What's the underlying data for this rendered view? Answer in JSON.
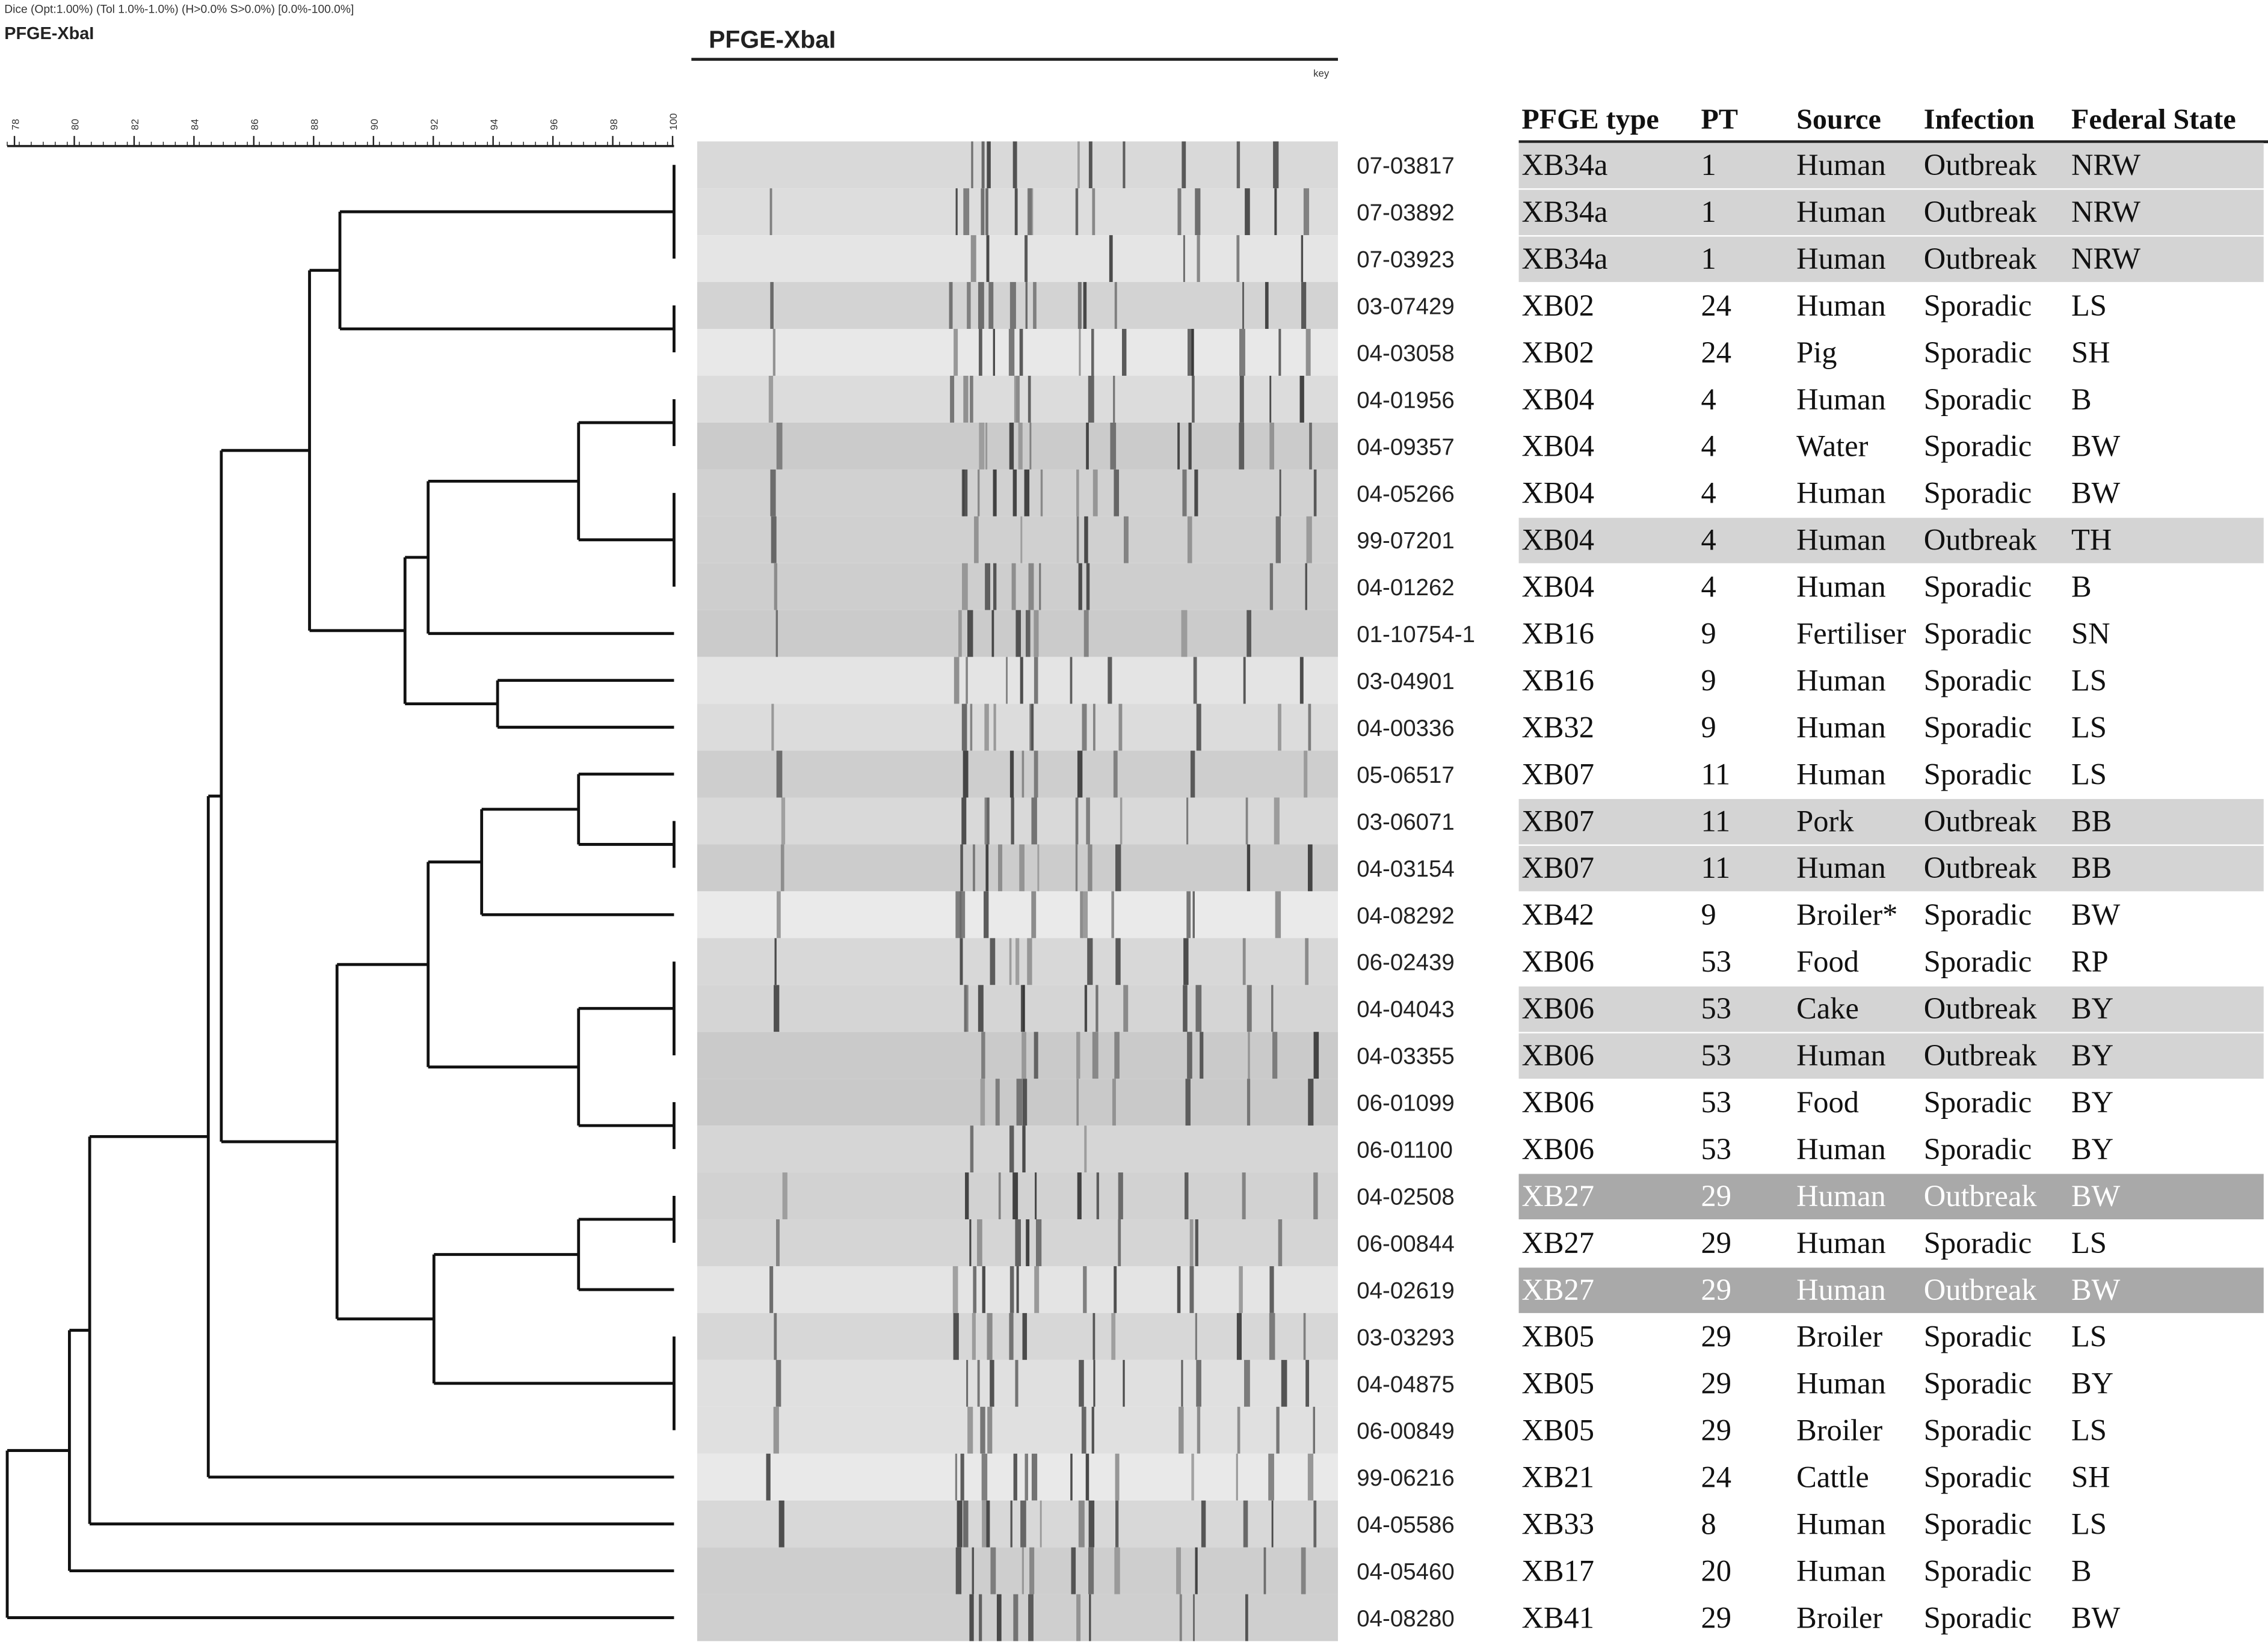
{
  "header": {
    "method": "Dice (Opt:1.00%) (Tol 1.0%-1.0%) (H>0.0% S>0.0%) [0.0%-100.0%]",
    "experiment": "PFGE-XbaI"
  },
  "dendrogram": {
    "scale_range": [
      78,
      100
    ],
    "scale_ticks": [
      78,
      80,
      82,
      84,
      86,
      88,
      90,
      92,
      94,
      96,
      98,
      100
    ]
  },
  "gel": {
    "title": "PFGE-XbaI",
    "key": "key"
  },
  "table": {
    "columns": [
      "PFGE type",
      "PT",
      "Source",
      "Infection",
      "Federal State"
    ],
    "rows": [
      [
        "07-03817",
        "XB34a",
        1,
        "Human",
        "Outbreak",
        "NRW"
      ],
      [
        "07-03892",
        "XB34a",
        1,
        "Human",
        "Outbreak",
        "NRW"
      ],
      [
        "07-03923",
        "XB34a",
        1,
        "Human",
        "Outbreak",
        "NRW"
      ],
      [
        "03-07429",
        "XB02",
        24,
        "Human",
        "Sporadic",
        "LS"
      ],
      [
        "04-03058",
        "XB02",
        24,
        "Pig",
        "Sporadic",
        "SH"
      ],
      [
        "04-01956",
        "XB04",
        4,
        "Human",
        "Sporadic",
        "B"
      ],
      [
        "04-09357",
        "XB04",
        4,
        "Water",
        "Sporadic",
        "BW"
      ],
      [
        "04-05266",
        "XB04",
        4,
        "Human",
        "Sporadic",
        "BW"
      ],
      [
        "99-07201",
        "XB04",
        4,
        "Human",
        "Outbreak",
        "TH"
      ],
      [
        "04-01262",
        "XB04",
        4,
        "Human",
        "Sporadic",
        "B"
      ],
      [
        "01-10754-1",
        "XB16",
        9,
        "Fertiliser",
        "Sporadic",
        "SN"
      ],
      [
        "03-04901",
        "XB16",
        9,
        "Human",
        "Sporadic",
        "LS"
      ],
      [
        "04-00336",
        "XB32",
        9,
        "Human",
        "Sporadic",
        "LS"
      ],
      [
        "05-06517",
        "XB07",
        11,
        "Human",
        "Sporadic",
        "LS"
      ],
      [
        "03-06071",
        "XB07",
        11,
        "Pork",
        "Outbreak",
        "BB"
      ],
      [
        "04-03154",
        "XB07",
        11,
        "Human",
        "Outbreak",
        "BB"
      ],
      [
        "04-08292",
        "XB42",
        9,
        "Broiler*",
        "Sporadic",
        "BW"
      ],
      [
        "06-02439",
        "XB06",
        53,
        "Food",
        "Sporadic",
        "RP"
      ],
      [
        "04-04043",
        "XB06",
        53,
        "Cake",
        "Outbreak",
        "BY"
      ],
      [
        "04-03355",
        "XB06",
        53,
        "Human",
        "Outbreak",
        "BY"
      ],
      [
        "06-01099",
        "XB06",
        53,
        "Food",
        "Sporadic",
        "BY"
      ],
      [
        "06-01100",
        "XB06",
        53,
        "Human",
        "Sporadic",
        "BY"
      ],
      [
        "04-02508",
        "XB27",
        29,
        "Human",
        "Outbreak",
        "BW"
      ],
      [
        "06-00844",
        "XB27",
        29,
        "Human",
        "Sporadic",
        "LS"
      ],
      [
        "04-02619",
        "XB27",
        29,
        "Human",
        "Outbreak",
        "BW"
      ],
      [
        "03-03293",
        "XB05",
        29,
        "Broiler",
        "Sporadic",
        "LS"
      ],
      [
        "04-04875",
        "XB05",
        29,
        "Human",
        "Sporadic",
        "BY"
      ],
      [
        "06-00849",
        "XB05",
        29,
        "Broiler",
        "Sporadic",
        "LS"
      ],
      [
        "99-06216",
        "XB21",
        24,
        "Cattle",
        "Sporadic",
        "SH"
      ],
      [
        "04-05586",
        "XB33",
        8,
        "Human",
        "Sporadic",
        "LS"
      ],
      [
        "04-05460",
        "XB17",
        20,
        "Human",
        "Sporadic",
        "B"
      ],
      [
        "04-08280",
        "XB41",
        29,
        "Broiler",
        "Sporadic",
        "BW"
      ]
    ],
    "row_shades": [
      "#d4d4d4",
      "#d4d4d4",
      "#d4d4d4",
      null,
      null,
      null,
      null,
      null,
      "#d4d4d4",
      null,
      null,
      null,
      null,
      null,
      "#d4d4d4",
      "#d4d4d4",
      null,
      null,
      "#d4d4d4",
      "#d4d4d4",
      null,
      null,
      "#a9a9a9",
      null,
      "#a9a9a9",
      null,
      null,
      null,
      null,
      null,
      null,
      null
    ]
  }
}
